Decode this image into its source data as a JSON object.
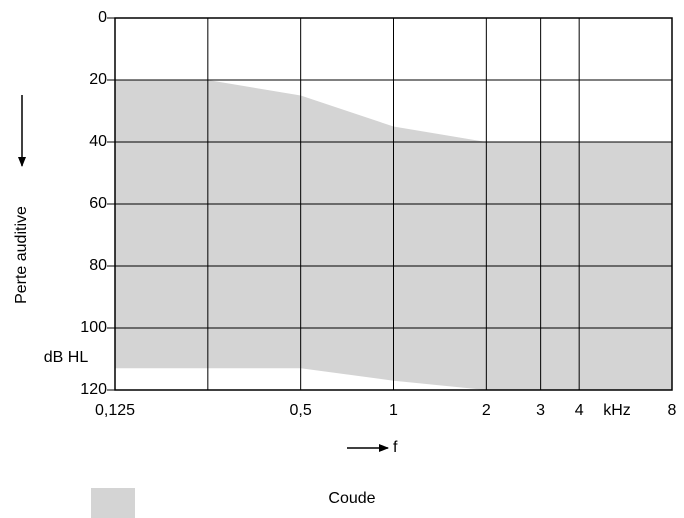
{
  "chart_data": {
    "type": "area_band",
    "y_label": "Perte auditive",
    "y_unit": "dB HL",
    "x_label": "f",
    "x_unit": "kHz",
    "xscale": "log",
    "xlim": [
      0.125,
      8
    ],
    "xticks": [
      {
        "value": 0.125,
        "label": "0,125"
      },
      {
        "value": 0.25,
        "label": null
      },
      {
        "value": 0.5,
        "label": "0,5"
      },
      1,
      2,
      3,
      4,
      8
    ],
    "ylim": [
      0,
      120
    ],
    "yticks": [
      0,
      20,
      40,
      60,
      80,
      100,
      120
    ],
    "y_inverted": true,
    "grid": true,
    "series": [
      {
        "name": "Coude",
        "color": "#d4d4d4",
        "x": [
          0.125,
          0.25,
          0.5,
          1,
          2,
          8
        ],
        "values": [
          20,
          20,
          25,
          35,
          40,
          40
        ],
        "values_low": [
          113,
          113,
          113,
          117,
          120,
          120
        ]
      }
    ]
  }
}
